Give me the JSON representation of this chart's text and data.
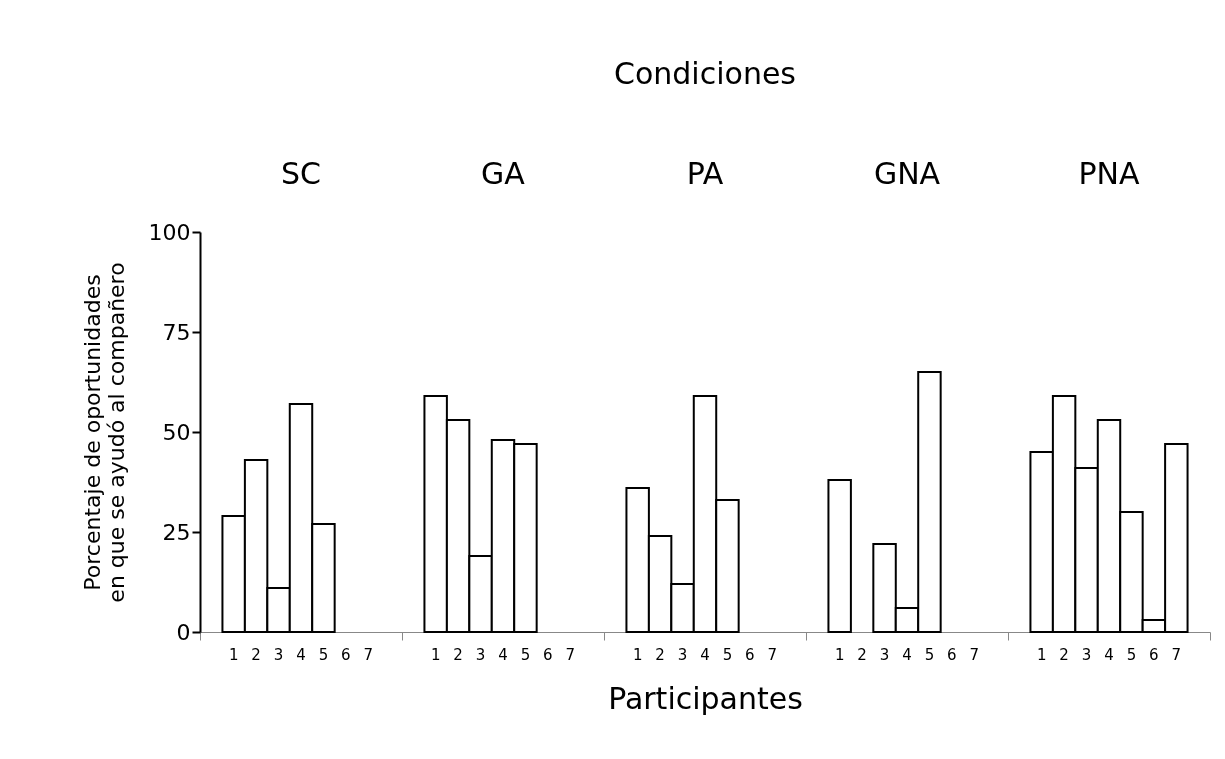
{
  "chart_data": {
    "type": "bar",
    "title": "Condiciones",
    "xlabel": "Participantes",
    "ylabel": "Porcentaje de oportunidades en que se ayudó al compañero",
    "categories": [
      "SC",
      "GA",
      "PA",
      "GNA",
      "PNA"
    ],
    "series": [
      {
        "name": "1",
        "color": "#ffffff",
        "values": [
          29,
          59,
          36,
          38,
          45
        ]
      },
      {
        "name": "2",
        "color": "#ffffff",
        "values": [
          43,
          53,
          24,
          null,
          59
        ]
      },
      {
        "name": "3",
        "color": "#ffffff",
        "values": [
          11,
          19,
          12,
          22,
          41
        ]
      },
      {
        "name": "4",
        "color": "#ffffff",
        "values": [
          57,
          48,
          59,
          6,
          53
        ]
      },
      {
        "name": "5",
        "color": "#ffffff",
        "values": [
          27,
          47,
          33,
          65,
          30
        ]
      },
      {
        "name": "6",
        "color": "#ffffff",
        "values": [
          null,
          null,
          null,
          null,
          3
        ]
      },
      {
        "name": "7",
        "color": "#ffffff",
        "values": [
          null,
          null,
          null,
          null,
          47
        ]
      }
    ],
    "ylim": [
      0,
      100
    ],
    "yticks": [
      0,
      25,
      50,
      75,
      100
    ],
    "grid": false
  }
}
